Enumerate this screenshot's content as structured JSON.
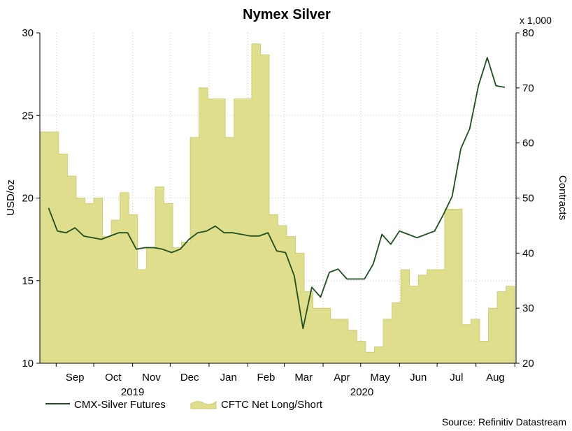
{
  "chart_data": {
    "type": "line+area",
    "title": "Nymex Silver",
    "left_axis": {
      "label": "USD/oz",
      "ticks": [
        "10",
        "15",
        "20",
        "25",
        "30"
      ],
      "range": [
        10,
        30
      ]
    },
    "right_axis": {
      "label": "Contracts",
      "unit_note": "x 1,000",
      "ticks": [
        "20",
        "30",
        "40",
        "50",
        "60",
        "70",
        "80"
      ],
      "range": [
        20,
        80
      ]
    },
    "month_labels": [
      "Sep",
      "Oct",
      "Nov",
      "Dec",
      "Jan",
      "Feb",
      "Mar",
      "Apr",
      "May",
      "Jun",
      "Jul",
      "Aug"
    ],
    "year_labels": [
      "2019",
      "2020"
    ],
    "source": "Source: Refinitiv Datastream",
    "colors": {
      "line": "#1f4e1f",
      "area": "#dede8c",
      "area_edge": "#c8c86a",
      "grid": "#c8c8c8"
    },
    "series": [
      {
        "name": "CMX-Silver Futures",
        "axis": "left",
        "x": [
          "2019-08-26",
          "2019-09-02",
          "2019-09-09",
          "2019-09-16",
          "2019-09-23",
          "2019-09-30",
          "2019-10-07",
          "2019-10-14",
          "2019-10-21",
          "2019-10-28",
          "2019-11-04",
          "2019-11-11",
          "2019-11-18",
          "2019-11-25",
          "2019-12-02",
          "2019-12-09",
          "2019-12-16",
          "2019-12-23",
          "2019-12-30",
          "2020-01-06",
          "2020-01-13",
          "2020-01-20",
          "2020-01-27",
          "2020-02-03",
          "2020-02-10",
          "2020-02-17",
          "2020-02-24",
          "2020-03-02",
          "2020-03-09",
          "2020-03-16",
          "2020-03-23",
          "2020-03-30",
          "2020-04-06",
          "2020-04-13",
          "2020-04-20",
          "2020-04-27",
          "2020-05-04",
          "2020-05-11",
          "2020-05-18",
          "2020-05-25",
          "2020-06-01",
          "2020-06-08",
          "2020-06-15",
          "2020-06-22",
          "2020-06-29",
          "2020-07-06",
          "2020-07-13",
          "2020-07-20",
          "2020-07-27",
          "2020-08-03",
          "2020-08-10",
          "2020-08-17",
          "2020-08-24"
        ],
        "values": [
          19.4,
          18.0,
          17.9,
          18.2,
          17.7,
          17.6,
          17.5,
          17.7,
          17.9,
          17.9,
          16.9,
          17.0,
          17.0,
          16.9,
          16.7,
          16.9,
          17.5,
          17.9,
          18.0,
          18.3,
          17.9,
          17.9,
          17.8,
          17.7,
          17.7,
          17.9,
          16.8,
          16.7,
          15.3,
          12.1,
          14.6,
          14.0,
          15.5,
          15.7,
          15.1,
          15.1,
          15.1,
          16.0,
          17.8,
          17.2,
          18.0,
          17.8,
          17.6,
          17.8,
          18.0,
          19.0,
          20.1,
          23.0,
          24.2,
          26.8,
          28.5,
          26.8,
          26.7
        ]
      },
      {
        "name": "CFTC Net Long/Short",
        "axis": "right",
        "x": [
          "2019-08-27",
          "2019-09-03",
          "2019-09-10",
          "2019-09-17",
          "2019-09-24",
          "2019-10-01",
          "2019-10-08",
          "2019-10-15",
          "2019-10-22",
          "2019-10-29",
          "2019-11-05",
          "2019-11-12",
          "2019-11-19",
          "2019-11-26",
          "2019-12-03",
          "2019-12-10",
          "2019-12-17",
          "2019-12-24",
          "2019-12-31",
          "2020-01-07",
          "2020-01-14",
          "2020-01-21",
          "2020-01-28",
          "2020-02-04",
          "2020-02-11",
          "2020-02-18",
          "2020-02-25",
          "2020-03-03",
          "2020-03-10",
          "2020-03-17",
          "2020-03-24",
          "2020-03-31",
          "2020-04-07",
          "2020-04-14",
          "2020-04-21",
          "2020-04-28",
          "2020-05-05",
          "2020-05-12",
          "2020-05-19",
          "2020-05-26",
          "2020-06-02",
          "2020-06-09",
          "2020-06-16",
          "2020-06-23",
          "2020-06-30",
          "2020-07-07",
          "2020-07-14",
          "2020-07-21",
          "2020-07-28",
          "2020-08-04",
          "2020-08-11",
          "2020-08-18",
          "2020-08-25"
        ],
        "values": [
          62,
          58,
          54,
          50,
          49,
          50,
          43,
          46,
          51,
          47,
          37,
          41,
          52,
          49,
          41,
          42,
          61,
          70,
          68,
          68,
          61,
          68,
          68,
          78,
          76,
          47,
          45,
          43,
          40,
          33,
          30,
          30,
          28,
          28,
          26,
          24,
          22,
          23,
          28,
          31,
          37,
          34,
          36,
          37,
          37,
          48,
          48,
          27,
          28,
          24,
          30,
          33,
          34
        ]
      }
    ]
  }
}
